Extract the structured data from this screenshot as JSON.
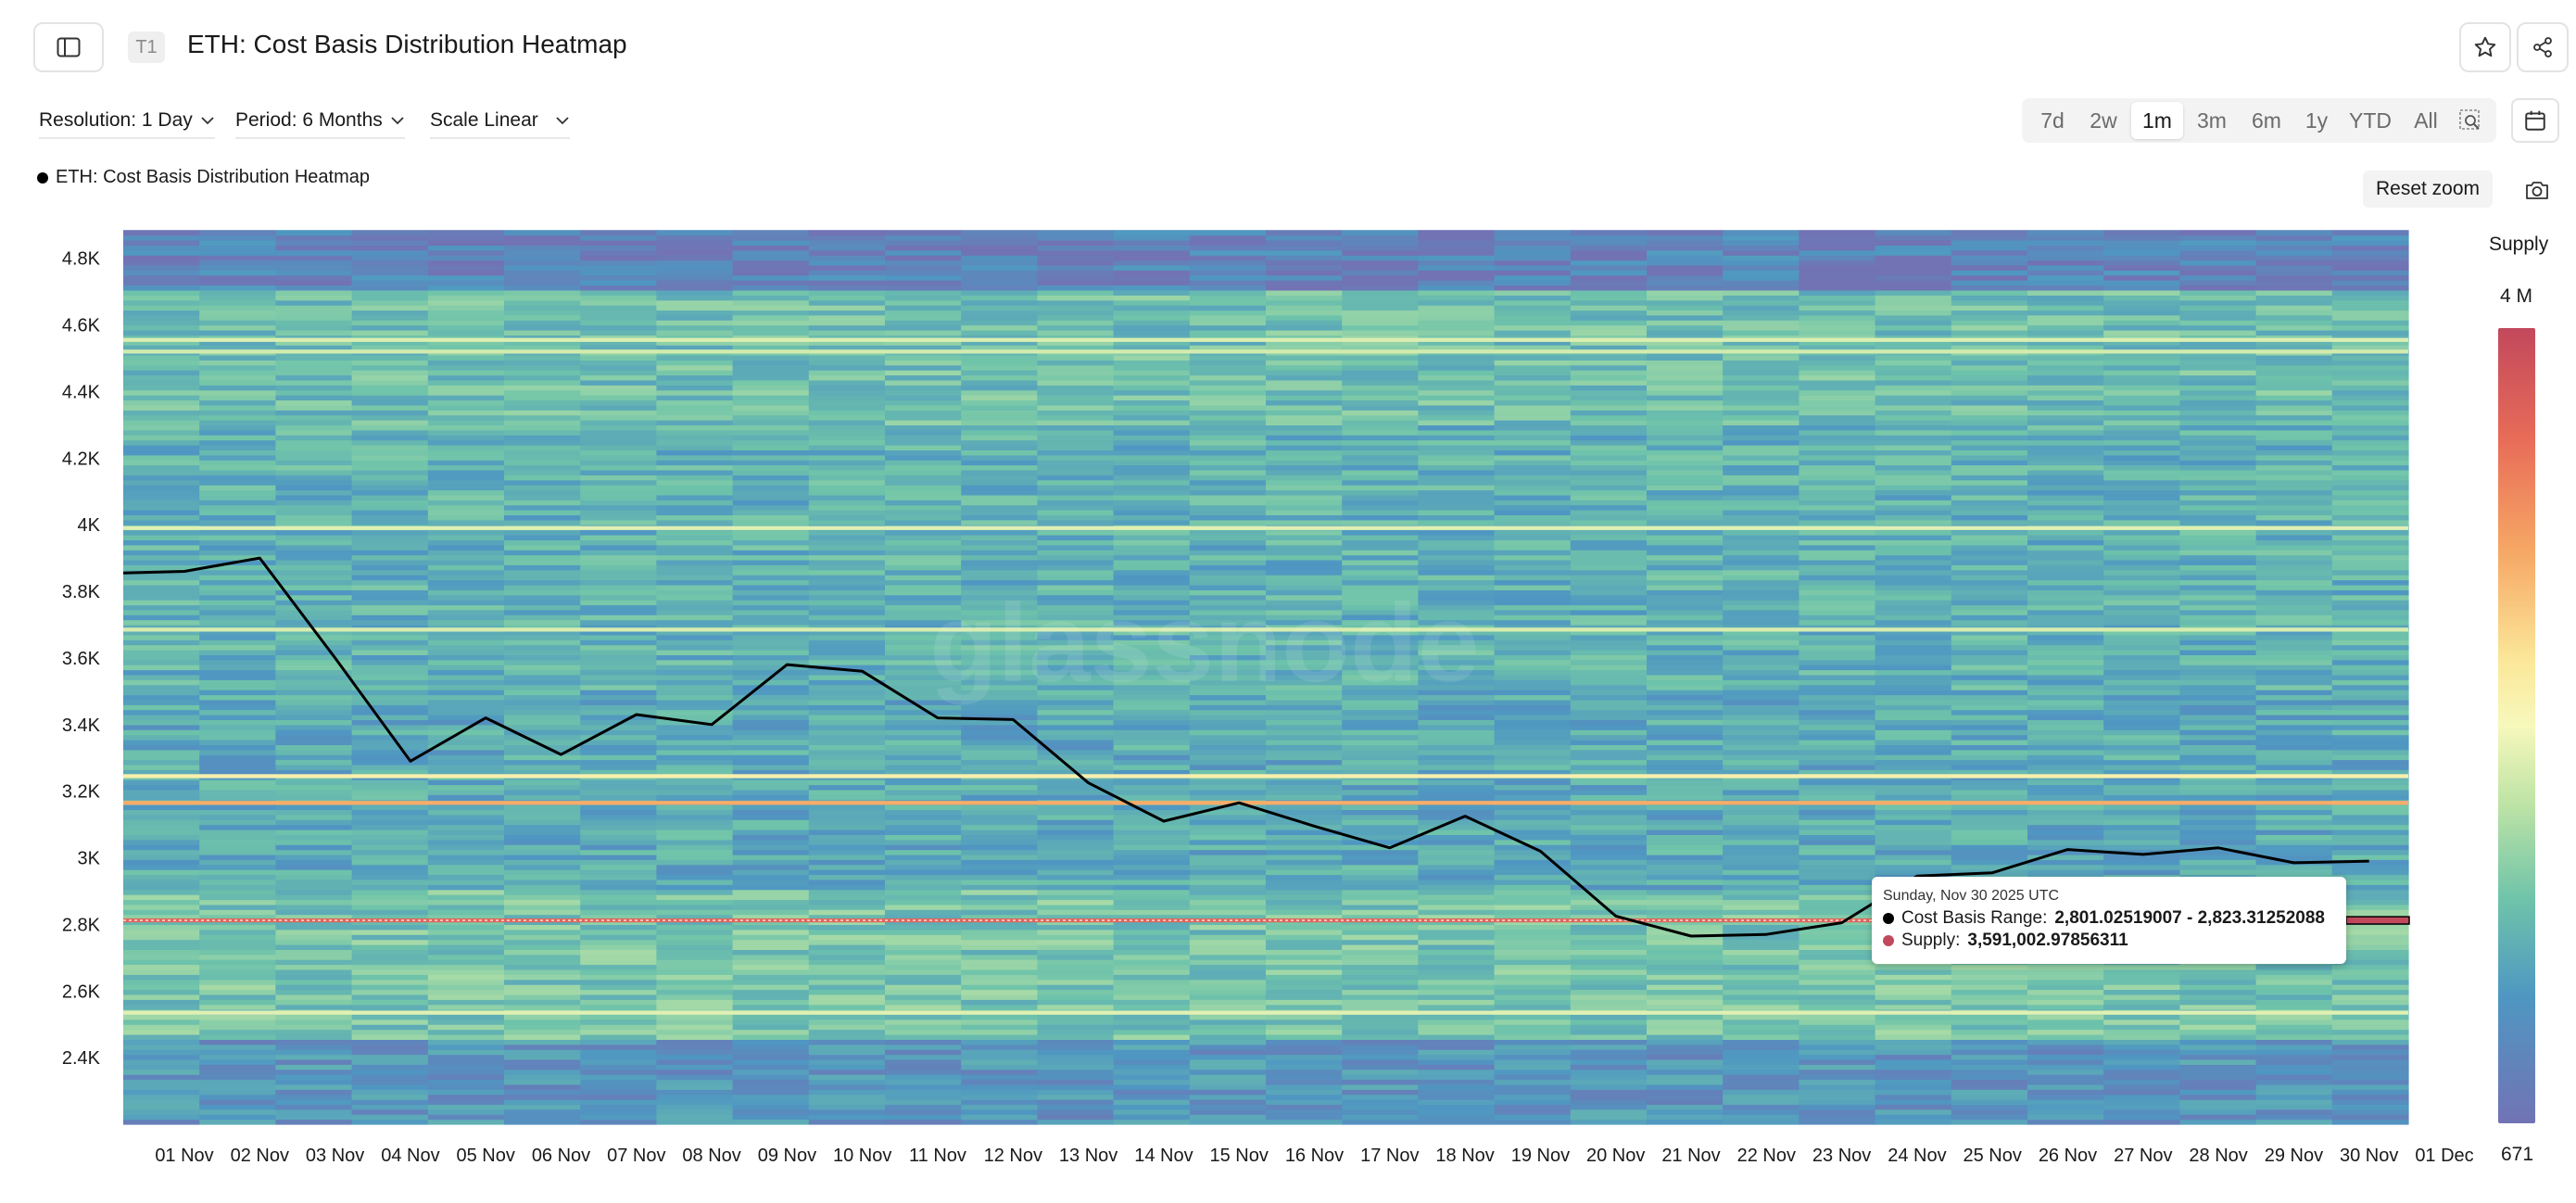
{
  "header": {
    "tier_badge": "T1",
    "title": "ETH: Cost Basis Distribution Heatmap",
    "icons": [
      "sidebar-toggle-icon",
      "star-icon",
      "share-icon"
    ]
  },
  "controls": {
    "resolution": "Resolution: 1 Day",
    "period": "Period: 6 Months",
    "scale": "Scale Linear",
    "ranges": [
      "7d",
      "2w",
      "1m",
      "3m",
      "6m",
      "1y",
      "YTD",
      "All"
    ],
    "active_range": "1m",
    "icons": [
      "zoom-select-icon",
      "calendar-icon",
      "camera-icon"
    ]
  },
  "legend": {
    "label": "ETH: Cost Basis Distribution Heatmap"
  },
  "reset_zoom": "Reset zoom",
  "watermark": "glassnode",
  "colorbar": {
    "title": "Supply",
    "max_label": "4 M",
    "min_label": "671",
    "colors": [
      "#c2485c",
      "#e86c58",
      "#f6a765",
      "#fbe89a",
      "#f7f8bc",
      "#bde3a5",
      "#6ec3aa",
      "#4f97c2",
      "#7173b5"
    ]
  },
  "tooltip": {
    "date": "Sunday, Nov 30 2025 UTC",
    "range_label": "Cost Basis Range:",
    "range_value": "2,801.02519007 - 2,823.31252088",
    "supply_label": "Supply:",
    "supply_value": "3,591,002.97856311",
    "range_dot_color": "#000000",
    "supply_dot_color": "#c2485c"
  },
  "chart_data": {
    "type": "heatmap",
    "x_labels": [
      "01 Nov",
      "02 Nov",
      "03 Nov",
      "04 Nov",
      "05 Nov",
      "06 Nov",
      "07 Nov",
      "08 Nov",
      "09 Nov",
      "10 Nov",
      "11 Nov",
      "12 Nov",
      "13 Nov",
      "14 Nov",
      "15 Nov",
      "16 Nov",
      "17 Nov",
      "18 Nov",
      "19 Nov",
      "20 Nov",
      "21 Nov",
      "22 Nov",
      "23 Nov",
      "24 Nov",
      "25 Nov",
      "26 Nov",
      "27 Nov",
      "28 Nov",
      "29 Nov",
      "30 Nov",
      "01 Dec"
    ],
    "y_ticks": [
      2400,
      2600,
      2800,
      3000,
      3200,
      3400,
      3600,
      3800,
      4000,
      4200,
      4400,
      4600,
      4800
    ],
    "y_tick_labels": [
      "2.4K",
      "2.6K",
      "2.8K",
      "3K",
      "3.2K",
      "3.4K",
      "3.6K",
      "3.8K",
      "4K",
      "4.2K",
      "4.4K",
      "4.6K",
      "4.8K"
    ],
    "ylim": [
      2200,
      4880
    ],
    "price_series": {
      "color": "#000000",
      "x": [
        "01 Nov",
        "02 Nov",
        "03 Nov",
        "04 Nov",
        "05 Nov",
        "06 Nov",
        "07 Nov",
        "08 Nov",
        "09 Nov",
        "10 Nov",
        "11 Nov",
        "12 Nov",
        "13 Nov",
        "14 Nov",
        "15 Nov",
        "16 Nov",
        "17 Nov",
        "18 Nov",
        "19 Nov",
        "20 Nov",
        "21 Nov",
        "22 Nov",
        "23 Nov",
        "24 Nov",
        "25 Nov",
        "26 Nov",
        "27 Nov",
        "28 Nov",
        "29 Nov",
        "30 Nov"
      ],
      "values": [
        3860,
        3900,
        3600,
        3290,
        3420,
        3310,
        3430,
        3400,
        3580,
        3560,
        3420,
        3415,
        3225,
        3110,
        3165,
        3095,
        3030,
        3125,
        3020,
        2825,
        2765,
        2770,
        2805,
        2945,
        2955,
        3025,
        3010,
        3030,
        2985,
        2990
      ]
    },
    "heat_bands": [
      {
        "y": 4555,
        "supply": 0.44
      },
      {
        "y": 4520,
        "supply": 0.42
      },
      {
        "y": 3990,
        "supply": 0.45
      },
      {
        "y": 3685,
        "supply": 0.43
      },
      {
        "y": 3245,
        "supply": 0.56
      },
      {
        "y": 3165,
        "supply": 0.74
      },
      {
        "y": 2812,
        "supply": 0.9
      },
      {
        "y": 2535,
        "supply": 0.45
      }
    ],
    "supply_range": [
      671,
      4000000
    ]
  }
}
